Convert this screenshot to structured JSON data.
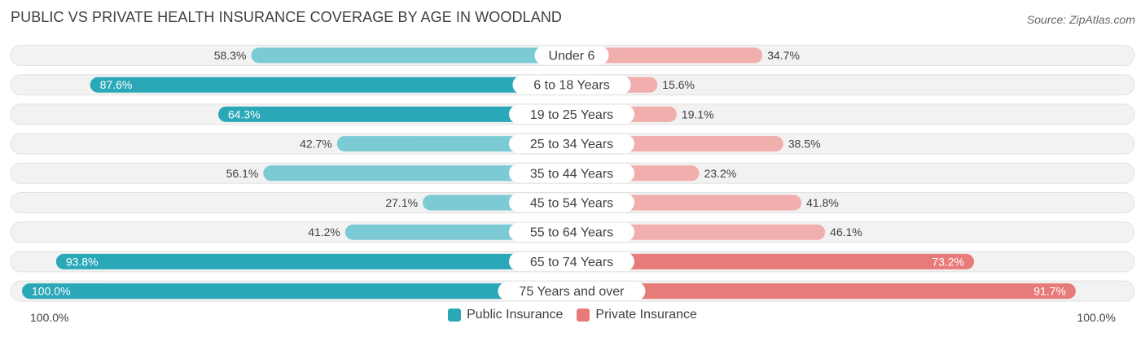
{
  "title": "PUBLIC VS PRIVATE HEALTH INSURANCE COVERAGE BY AGE IN WOODLAND",
  "source": "Source: ZipAtlas.com",
  "axis": {
    "left_label": "100.0%",
    "right_label": "100.0%"
  },
  "legend": {
    "public_label": "Public Insurance",
    "private_label": "Private Insurance"
  },
  "colors": {
    "public_strong": "#2aa8b8",
    "public_light": "#7ccbd4",
    "private_strong": "#e77b79",
    "private_light": "#f0aeac",
    "track": "#f2f2f2"
  },
  "chart_data": {
    "type": "bar",
    "orientation": "horizontal-diverging",
    "title": "PUBLIC VS PRIVATE HEALTH INSURANCE COVERAGE BY AGE IN WOODLAND",
    "categories": [
      "Under 6",
      "6 to 18 Years",
      "19 to 25 Years",
      "25 to 34 Years",
      "35 to 44 Years",
      "45 to 54 Years",
      "55 to 64 Years",
      "65 to 74 Years",
      "75 Years and over"
    ],
    "series": [
      {
        "name": "Public Insurance",
        "values": [
          58.3,
          87.6,
          64.3,
          42.7,
          56.1,
          27.1,
          41.2,
          93.8,
          100.0
        ],
        "labels": [
          "58.3%",
          "87.6%",
          "64.3%",
          "42.7%",
          "56.1%",
          "27.1%",
          "41.2%",
          "93.8%",
          "100.0%"
        ]
      },
      {
        "name": "Private Insurance",
        "values": [
          34.7,
          15.6,
          19.1,
          38.5,
          23.2,
          41.8,
          46.1,
          73.2,
          91.7
        ],
        "labels": [
          "34.7%",
          "15.6%",
          "19.1%",
          "38.5%",
          "23.2%",
          "41.8%",
          "46.1%",
          "73.2%",
          "91.7%"
        ]
      }
    ],
    "xlim": [
      0,
      100
    ],
    "legend_position": "bottom-center"
  }
}
